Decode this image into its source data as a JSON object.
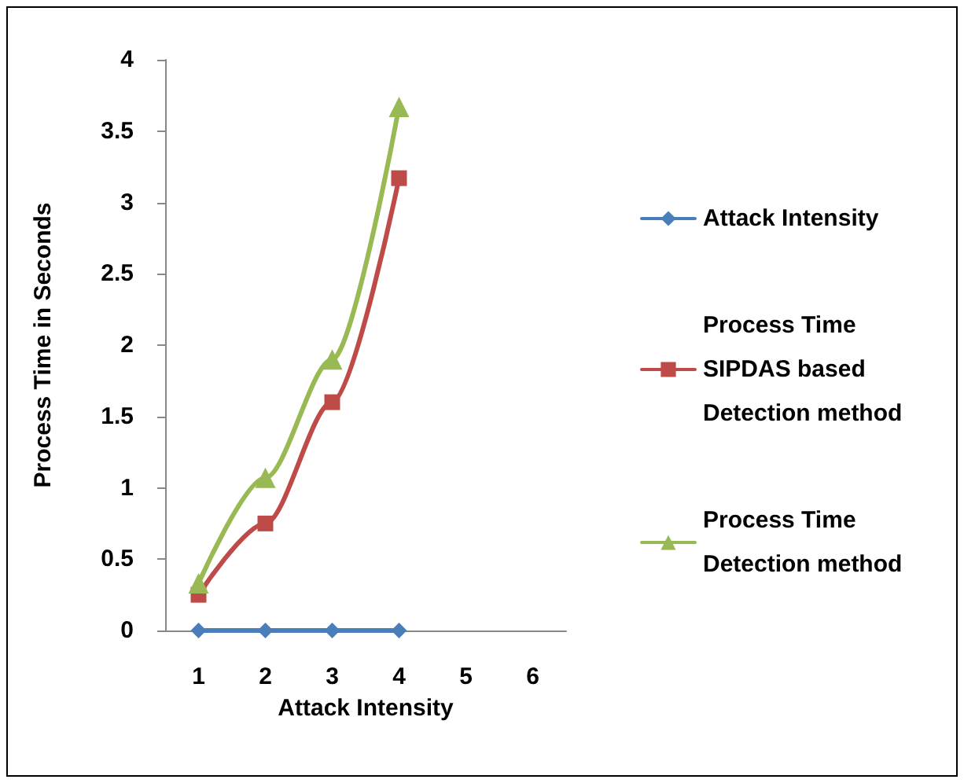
{
  "chart_data": {
    "type": "line",
    "xlabel": "Attack Intensity",
    "ylabel": "Process Time in Seconds",
    "categories": [
      "1",
      "2",
      "3",
      "4",
      "5",
      "6"
    ],
    "series": [
      {
        "name": "Attack Intensity",
        "color": "#4a7ebb",
        "marker": "diamond",
        "values": [
          0,
          0,
          0,
          0,
          null,
          null
        ]
      },
      {
        "name": "Process Time SIPDAS based Detection method",
        "color": "#be4b48",
        "marker": "square",
        "values": [
          0.25,
          0.75,
          1.6,
          3.17,
          null,
          null
        ]
      },
      {
        "name": "Process Time Detection method",
        "color": "#98b954",
        "marker": "triangle",
        "values": [
          0.33,
          1.07,
          1.9,
          3.67,
          null,
          null
        ]
      }
    ],
    "ylim": [
      0,
      4
    ],
    "yticks": [
      0,
      0.5,
      1,
      1.5,
      2,
      2.5,
      3,
      3.5,
      4
    ],
    "grid": false,
    "legend": "right"
  }
}
